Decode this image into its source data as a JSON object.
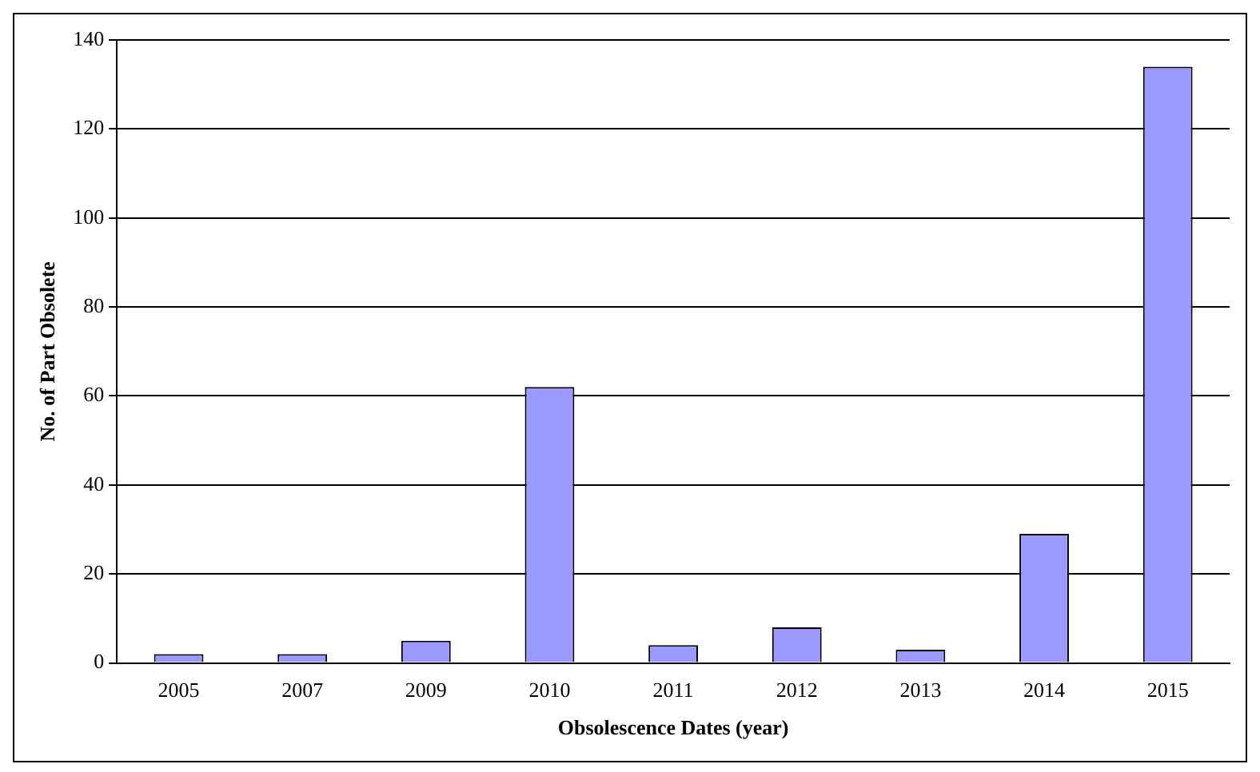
{
  "chart_data": {
    "type": "bar",
    "xlabel": "Obsolescence Dates (year)",
    "ylabel": "No. of Part Obsolete",
    "categories": [
      "2005",
      "2007",
      "2009",
      "2010",
      "2011",
      "2012",
      "2013",
      "2014",
      "2015"
    ],
    "values": [
      2,
      2,
      5,
      62,
      4,
      8,
      3,
      29,
      134
    ],
    "color": "#9999ff",
    "ylim": [
      0,
      140
    ],
    "yticks": [
      0,
      20,
      40,
      60,
      80,
      100,
      120,
      140
    ],
    "grid": "y",
    "legend": false
  }
}
